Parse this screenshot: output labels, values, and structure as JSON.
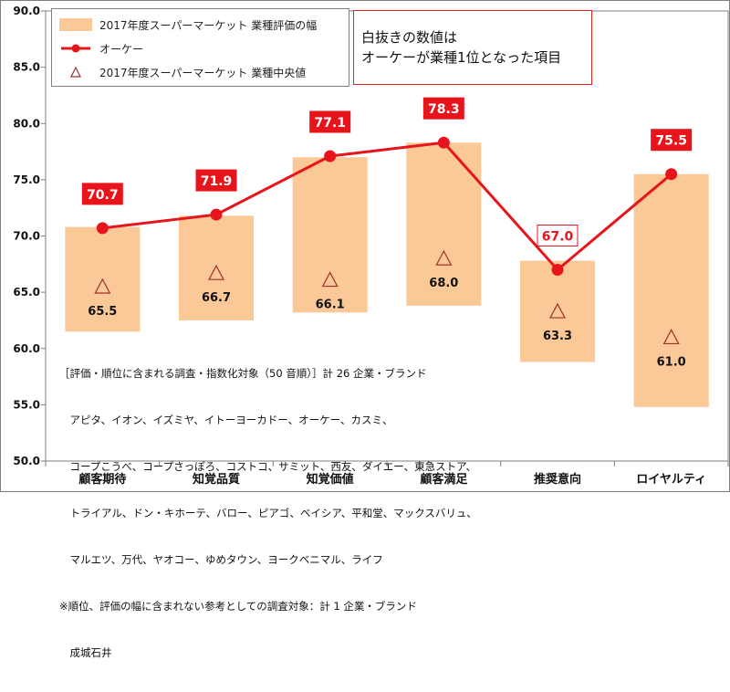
{
  "chart_data": {
    "type": "bar",
    "categories": [
      "顧客期待",
      "知覚品質",
      "知覚価値",
      "顧客満足",
      "推奨意向",
      "ロイヤルティ"
    ],
    "ylim": [
      50,
      90
    ],
    "yticks": [
      "50.0",
      "55.0",
      "60.0",
      "65.0",
      "70.0",
      "75.0",
      "80.0",
      "85.0",
      "90.0"
    ],
    "grid": false,
    "series": [
      {
        "name": "2017年度スーパーマーケット 業種評価の幅",
        "type": "range-bar",
        "low": [
          61.5,
          62.5,
          63.2,
          63.8,
          58.8,
          54.8
        ],
        "high": [
          70.8,
          71.8,
          77.0,
          78.3,
          67.8,
          75.5
        ]
      },
      {
        "name": "オーケー",
        "type": "line",
        "values": [
          70.7,
          71.9,
          77.1,
          78.3,
          67.0,
          75.5
        ],
        "labels": [
          "70.7",
          "71.9",
          "77.1",
          "78.3",
          "67.0",
          "75.5"
        ],
        "label_style": [
          "filled",
          "filled",
          "filled",
          "filled",
          "outline",
          "filled"
        ]
      },
      {
        "name": "2017年度スーパーマーケット 業種中央値",
        "type": "marker",
        "values": [
          65.5,
          66.7,
          66.1,
          68.0,
          63.3,
          61.0
        ],
        "labels": [
          "65.5",
          "66.7",
          "66.1",
          "68.0",
          "63.3",
          "61.0"
        ]
      }
    ],
    "legend": "top-left",
    "annotation": [
      "白抜きの数値は",
      "オーケーが業種1位となった項目"
    ],
    "note": [
      "［評価・順位に含まれる調査・指数化対象（50 音順）］計 26 企業・ブランド",
      "　アピタ、イオン、イズミヤ、イトーヨーカドー、オーケー、カスミ、",
      "　コープこうべ、コープさっぽろ、コストコ、サミット、西友、ダイエー、東急ストア、",
      "　トライアル、ドン・キホーテ、バロー、ピアゴ、ベイシア、平和堂、マックスバリュ、",
      "　マルエツ、万代、ヤオコー、ゆめタウン、ヨークベニマル、ライフ",
      "※順位、評価の幅に含まれない参考としての調査対象：計 1 企業・ブランド",
      "　成城石井"
    ],
    "colors": {
      "range": "#fbc898",
      "line": "#e8141b",
      "marker": "#a0312b"
    }
  }
}
